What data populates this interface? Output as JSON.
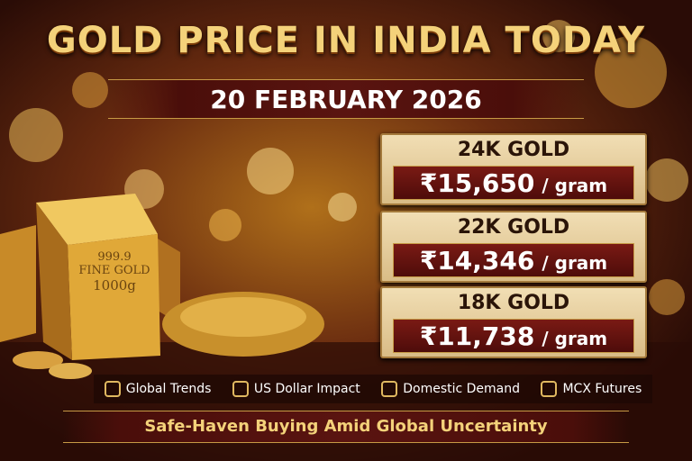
{
  "header": {
    "title": "GOLD PRICE IN INDIA TODAY",
    "date": "20 FEBRUARY 2026"
  },
  "bar_stamp": {
    "purity": "999.9",
    "label": "FINE GOLD",
    "weight": "1000g"
  },
  "cards": [
    {
      "label": "24K GOLD",
      "price": "₹15,650",
      "unit": "/ gram"
    },
    {
      "label": "22K GOLD",
      "price": "₹14,346",
      "unit": "/ gram"
    },
    {
      "label": "18K GOLD",
      "price": "₹11,738",
      "unit": "/ gram"
    }
  ],
  "factors": [
    "Global Trends",
    "US Dollar Impact",
    "Domestic Demand",
    "MCX Futures"
  ],
  "footer": "Safe-Haven Buying Amid Global Uncertainty"
}
